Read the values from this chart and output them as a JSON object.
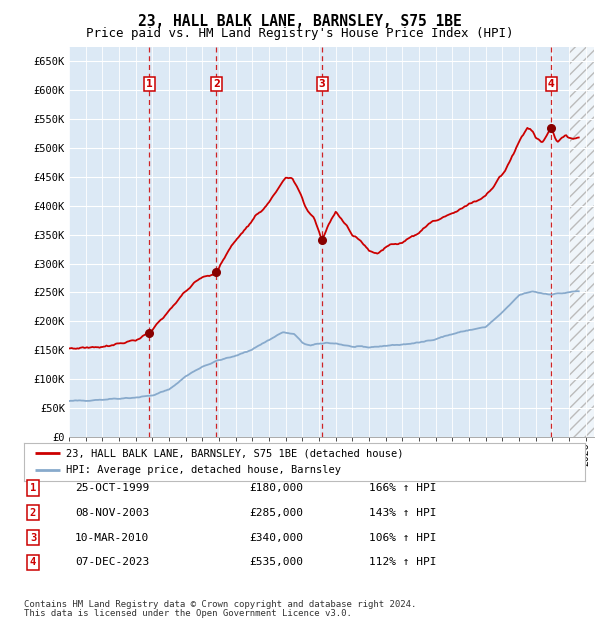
{
  "title": "23, HALL BALK LANE, BARNSLEY, S75 1BE",
  "subtitle": "Price paid vs. HM Land Registry's House Price Index (HPI)",
  "title_fontsize": 10.5,
  "subtitle_fontsize": 9,
  "xlim": [
    1995.0,
    2026.5
  ],
  "ylim": [
    0,
    675000
  ],
  "yticks": [
    0,
    50000,
    100000,
    150000,
    200000,
    250000,
    300000,
    350000,
    400000,
    450000,
    500000,
    550000,
    600000,
    650000
  ],
  "ytick_labels": [
    "£0",
    "£50K",
    "£100K",
    "£150K",
    "£200K",
    "£250K",
    "£300K",
    "£350K",
    "£400K",
    "£450K",
    "£500K",
    "£550K",
    "£600K",
    "£650K"
  ],
  "background_color": "#dce9f5",
  "hatch_region_start": 2025.0,
  "sale_color": "#cc0000",
  "hpi_color": "#88aacc",
  "grid_color": "#ffffff",
  "purchases": [
    {
      "num": 1,
      "year": 1999.81,
      "price": 180000,
      "date": "25-OCT-1999",
      "pct": "166%",
      "label_price": "£180,000"
    },
    {
      "num": 2,
      "year": 2003.85,
      "price": 285000,
      "date": "08-NOV-2003",
      "pct": "143%",
      "label_price": "£285,000"
    },
    {
      "num": 3,
      "year": 2010.19,
      "price": 340000,
      "date": "10-MAR-2010",
      "pct": "106%",
      "label_price": "£340,000"
    },
    {
      "num": 4,
      "year": 2023.93,
      "price": 535000,
      "date": "07-DEC-2023",
      "pct": "112%",
      "label_price": "£535,000"
    }
  ],
  "legend_line1": "23, HALL BALK LANE, BARNSLEY, S75 1BE (detached house)",
  "legend_line2": "HPI: Average price, detached house, Barnsley",
  "footer_line1": "Contains HM Land Registry data © Crown copyright and database right 2024.",
  "footer_line2": "This data is licensed under the Open Government Licence v3.0.",
  "table_rows": [
    {
      "num": 1,
      "date": "25-OCT-1999",
      "price": "£180,000",
      "pct": "166% ↑ HPI"
    },
    {
      "num": 2,
      "date": "08-NOV-2003",
      "price": "£285,000",
      "pct": "143% ↑ HPI"
    },
    {
      "num": 3,
      "date": "10-MAR-2010",
      "price": "£340,000",
      "pct": "106% ↑ HPI"
    },
    {
      "num": 4,
      "date": "07-DEC-2023",
      "price": "£535,000",
      "pct": "112% ↑ HPI"
    }
  ]
}
